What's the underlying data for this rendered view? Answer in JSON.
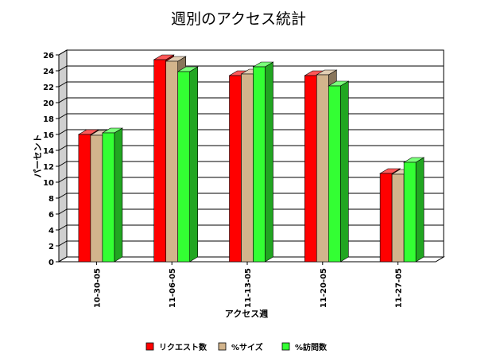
{
  "chart_data": {
    "type": "bar",
    "title": "週別のアクセス統計",
    "xlabel": "アクセス週",
    "ylabel": "パーセント",
    "categories": [
      "10-30-05",
      "11-06-05",
      "11-13-05",
      "11-20-05",
      "11-27-05"
    ],
    "series": [
      {
        "name": "リクエスト数",
        "values": [
          16.0,
          25.4,
          23.4,
          23.4,
          11.1
        ],
        "color": "#ff0000"
      },
      {
        "name": "%サイズ",
        "values": [
          15.9,
          25.2,
          23.6,
          23.5,
          11.0
        ],
        "color": "#d2b48c"
      },
      {
        "name": "%訪問数",
        "values": [
          16.2,
          23.9,
          24.5,
          22.1,
          12.5
        ],
        "color": "#33ff33"
      }
    ],
    "ylim": [
      0,
      26
    ],
    "yticks": [
      0,
      2,
      4,
      6,
      8,
      10,
      12,
      14,
      16,
      18,
      20,
      22,
      24,
      26
    ],
    "grid": true,
    "legend_position": "bottom",
    "style": "3d"
  }
}
